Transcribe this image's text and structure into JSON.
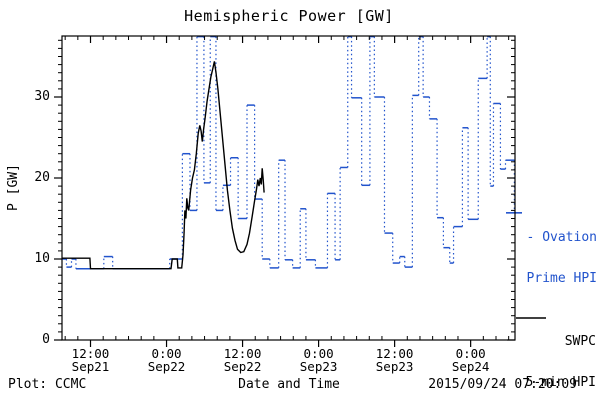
{
  "title": "Hemispheric Power [GW]",
  "y_axis": {
    "label": "P [GW]",
    "tick_labels": [
      "0",
      "10",
      "20",
      "30"
    ]
  },
  "footer": {
    "left": "Plot: CCMC",
    "center": "Date and Time",
    "right": "2015/09/24 07:20:09"
  },
  "legend": {
    "ovation": {
      "line1": "- Ovation",
      "line2": "Prime HPI",
      "latest_value_gw": 15.7
    },
    "swpc": {
      "line1": "SWPC",
      "line2": "5-min HPI"
    }
  },
  "chart_data": {
    "type": "line",
    "title": "Hemispheric Power [GW]",
    "xlabel": "Date and Time",
    "ylabel": "P [GW]",
    "ylim": [
      0,
      37.5
    ],
    "grid": false,
    "x_unit": "hours from plot start (approx 07:30 Sep21 2015)",
    "x_domain_hours": [
      0,
      71.5
    ],
    "x_ticks": [
      {
        "hour": 4.5,
        "time": "12:00",
        "date": "Sep21"
      },
      {
        "hour": 16.5,
        "time": "0:00",
        "date": "Sep22"
      },
      {
        "hour": 28.5,
        "time": "12:00",
        "date": "Sep22"
      },
      {
        "hour": 40.5,
        "time": "0:00",
        "date": "Sep23"
      },
      {
        "hour": 52.5,
        "time": "12:00",
        "date": "Sep23"
      },
      {
        "hour": 64.5,
        "time": "0:00",
        "date": "Sep24"
      }
    ],
    "x_minor_tick_step_hours": 2,
    "y_major_ticks": [
      0,
      10,
      20,
      30
    ],
    "y_minor_tick_step": 1,
    "colors": {
      "ovation": "#2153cc",
      "swpc": "#000000",
      "frame": "#000000",
      "background": "#ffffff"
    },
    "series": [
      {
        "name": "Ovation Prime HPI",
        "style": "step-dotted-vertical",
        "color_key": "ovation",
        "clipped_at_top_value": 37.8,
        "points_hours_gw": [
          [
            0,
            10
          ],
          [
            0.7,
            9
          ],
          [
            1.5,
            10
          ],
          [
            2.2,
            8.8
          ],
          [
            6.6,
            10.3
          ],
          [
            8,
            8.8
          ],
          [
            17,
            10
          ],
          [
            19,
            23
          ],
          [
            20.2,
            16
          ],
          [
            21.3,
            37.8
          ],
          [
            22.4,
            19.4
          ],
          [
            23.4,
            37.8
          ],
          [
            24.3,
            16
          ],
          [
            25.4,
            19.1
          ],
          [
            26.6,
            22.5
          ],
          [
            27.8,
            15
          ],
          [
            29.2,
            29
          ],
          [
            30.4,
            17.4
          ],
          [
            31.6,
            10
          ],
          [
            32.8,
            8.9
          ],
          [
            34.2,
            22.2
          ],
          [
            35.2,
            9.9
          ],
          [
            36.4,
            8.9
          ],
          [
            37.6,
            16.2
          ],
          [
            38.5,
            9.9
          ],
          [
            40,
            8.9
          ],
          [
            41.9,
            18.1
          ],
          [
            43.1,
            9.9
          ],
          [
            43.9,
            21.3
          ],
          [
            45.1,
            37.8
          ],
          [
            45.7,
            29.9
          ],
          [
            47.3,
            19.1
          ],
          [
            48.6,
            37.8
          ],
          [
            49.3,
            30
          ],
          [
            50.9,
            13.2
          ],
          [
            52.2,
            9.5
          ],
          [
            53.3,
            10.3
          ],
          [
            54.1,
            9
          ],
          [
            55.3,
            30.2
          ],
          [
            56.3,
            37.8
          ],
          [
            57,
            30
          ],
          [
            58,
            27.3
          ],
          [
            59.2,
            15.1
          ],
          [
            60.2,
            11.4
          ],
          [
            61.2,
            9.5
          ],
          [
            61.8,
            14
          ],
          [
            63.2,
            26.2
          ],
          [
            64.1,
            14.9
          ],
          [
            65.7,
            32.3
          ],
          [
            67.1,
            37.8
          ],
          [
            67.6,
            19
          ],
          [
            68.1,
            29.2
          ],
          [
            69.2,
            21.1
          ],
          [
            70,
            22.2
          ],
          [
            71.4,
            15.7
          ]
        ]
      },
      {
        "name": "SWPC 5-min HPI",
        "style": "solid",
        "color_key": "swpc",
        "points_hours_gw": [
          [
            0,
            10.1
          ],
          [
            4.4,
            10.1
          ],
          [
            4.5,
            8.8
          ],
          [
            17.2,
            8.8
          ],
          [
            17.4,
            10
          ],
          [
            18.2,
            10
          ],
          [
            18.3,
            8.9
          ],
          [
            18.9,
            8.9
          ],
          [
            19.1,
            10.5
          ],
          [
            19.25,
            13
          ],
          [
            19.4,
            16
          ],
          [
            19.55,
            15
          ],
          [
            19.7,
            17.5
          ],
          [
            19.85,
            16.3
          ],
          [
            20,
            16
          ],
          [
            20.3,
            18.5
          ],
          [
            20.6,
            20
          ],
          [
            20.9,
            21
          ],
          [
            21.2,
            23
          ],
          [
            21.5,
            25.5
          ],
          [
            21.75,
            26.5
          ],
          [
            21.95,
            25.8
          ],
          [
            22.15,
            24.5
          ],
          [
            22.35,
            26
          ],
          [
            22.6,
            27.5
          ],
          [
            22.9,
            29.5
          ],
          [
            23.2,
            31
          ],
          [
            23.5,
            32.5
          ],
          [
            23.8,
            33.5
          ],
          [
            24.05,
            34.4
          ],
          [
            24.3,
            33
          ],
          [
            24.6,
            31
          ],
          [
            24.9,
            28.5
          ],
          [
            25.2,
            26
          ],
          [
            25.5,
            23.5
          ],
          [
            25.8,
            21
          ],
          [
            26.1,
            18.5
          ],
          [
            26.5,
            16
          ],
          [
            26.9,
            13.8
          ],
          [
            27.3,
            12.3
          ],
          [
            27.7,
            11.2
          ],
          [
            28.2,
            10.8
          ],
          [
            28.7,
            10.9
          ],
          [
            29.2,
            11.8
          ],
          [
            29.6,
            13.2
          ],
          [
            30,
            15.2
          ],
          [
            30.4,
            17.2
          ],
          [
            30.7,
            18.6
          ],
          [
            30.9,
            19.8
          ],
          [
            31.1,
            19
          ],
          [
            31.3,
            20
          ],
          [
            31.45,
            19.2
          ],
          [
            31.6,
            21.2
          ],
          [
            31.75,
            19.8
          ],
          [
            31.9,
            18.2
          ]
        ]
      }
    ]
  }
}
